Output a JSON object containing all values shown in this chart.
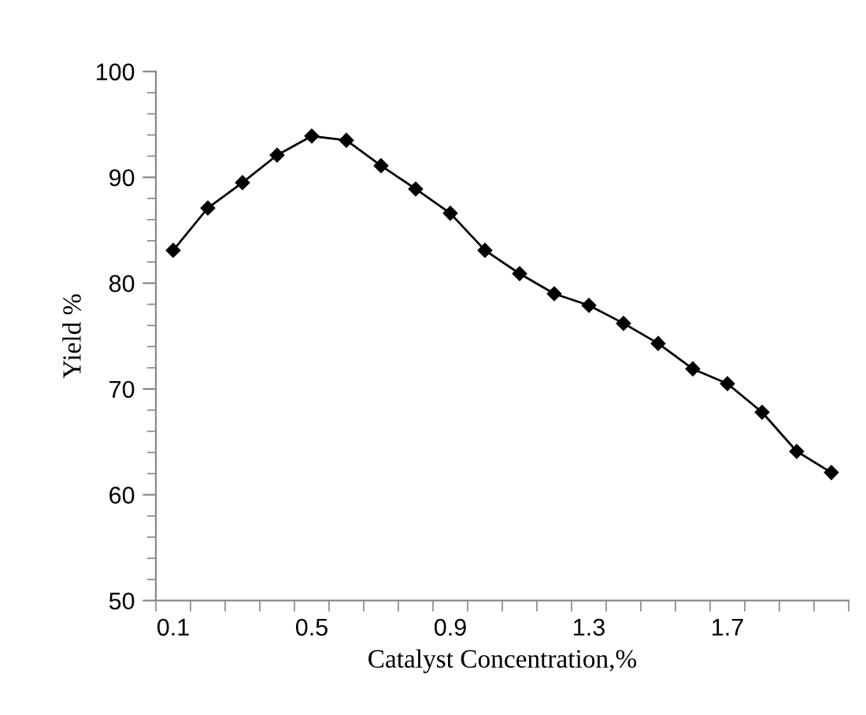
{
  "chart_data": {
    "type": "line",
    "xlabel": "Catalyst Concentration,%",
    "ylabel": "Yield %",
    "categories": [
      "0.1",
      null,
      null,
      null,
      "0.5",
      null,
      null,
      null,
      "0.9",
      null,
      null,
      null,
      "1.3",
      null,
      null,
      null,
      "1.7",
      null,
      null,
      null
    ],
    "series": [
      {
        "color": "#000000",
        "values": [
          83.1,
          87.1,
          89.5,
          92.1,
          93.9,
          93.5,
          91.1,
          88.9,
          86.6,
          83.1,
          80.9,
          79.0,
          77.9,
          76.2,
          74.3,
          71.9,
          70.5,
          67.8,
          64.1,
          62.1
        ]
      }
    ],
    "ylim": [
      50,
      100
    ],
    "yticks": [
      50,
      60,
      70,
      80,
      90,
      100
    ],
    "grid": false,
    "legend": false,
    "marker": "diamond",
    "line_style": "solid"
  }
}
